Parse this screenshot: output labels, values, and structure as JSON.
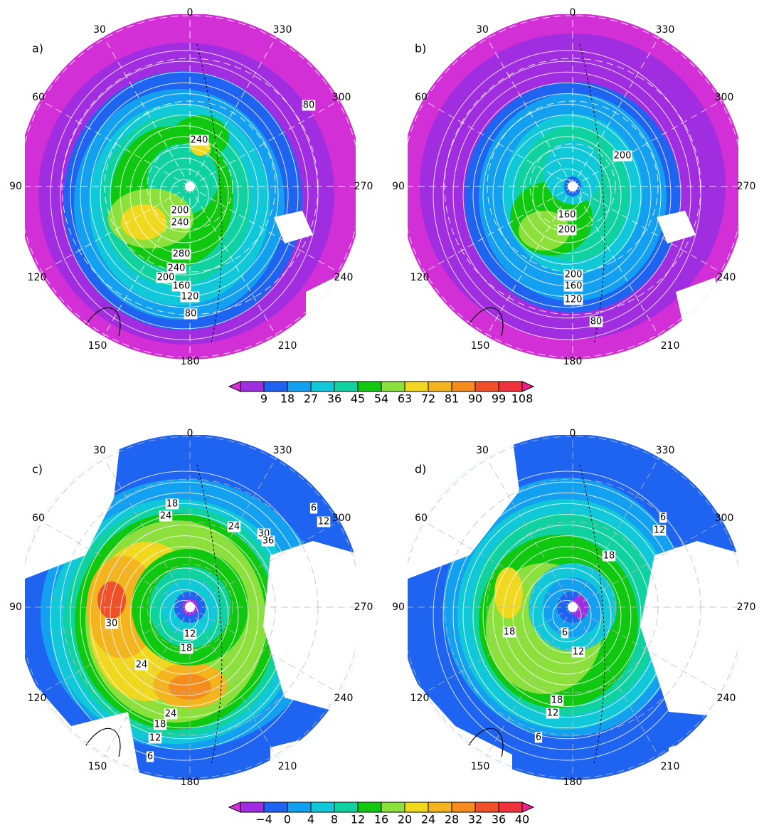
{
  "panels": [
    {
      "label": "a)",
      "longitudes": [
        0,
        330,
        300,
        270,
        240,
        210,
        180,
        150,
        120,
        90,
        60,
        30
      ],
      "contour_labels": [
        240,
        200,
        240,
        280,
        240,
        200,
        160,
        120,
        80,
        80
      ]
    },
    {
      "label": "b)",
      "longitudes": [
        0,
        330,
        300,
        270,
        240,
        210,
        180,
        150,
        120,
        90,
        60,
        30
      ],
      "contour_labels": [
        200,
        160,
        200,
        200,
        160,
        120,
        80
      ]
    },
    {
      "label": "c)",
      "longitudes": [
        0,
        330,
        300,
        270,
        240,
        210,
        180,
        150,
        120,
        90,
        60,
        30
      ],
      "contour_labels": [
        18,
        24,
        24,
        30,
        36,
        6,
        12,
        30,
        12,
        18,
        24,
        24,
        18,
        12,
        6
      ]
    },
    {
      "label": "d)",
      "longitudes": [
        0,
        330,
        300,
        270,
        240,
        210,
        180,
        150,
        120,
        90,
        60,
        30
      ],
      "contour_labels": [
        6,
        12,
        18,
        18,
        6,
        12,
        18,
        12,
        6
      ]
    }
  ],
  "colorbars": [
    {
      "levels": [
        9,
        18,
        27,
        36,
        45,
        54,
        63,
        72,
        81,
        90,
        99,
        108
      ],
      "colors": [
        "#d22fd6",
        "#a02ee0",
        "#1e64f0",
        "#13a0f0",
        "#10c8d8",
        "#10d2a0",
        "#10c810",
        "#8ce03c",
        "#f0d81e",
        "#f4b41e",
        "#f48c1e",
        "#f05028",
        "#f0323c",
        "#f01e8c"
      ]
    },
    {
      "levels": [
        {
          "value": -4,
          "label": "−4"
        },
        0,
        4,
        8,
        12,
        16,
        20,
        24,
        28,
        32,
        36,
        40
      ],
      "colors": [
        "#d22fd6",
        "#a02ee0",
        "#1e64f0",
        "#13a0f0",
        "#10c8d8",
        "#10d2a0",
        "#10c810",
        "#8ce03c",
        "#f0d81e",
        "#f4b41e",
        "#f48c1e",
        "#f05028",
        "#f0323c",
        "#f01e8c"
      ]
    }
  ]
}
